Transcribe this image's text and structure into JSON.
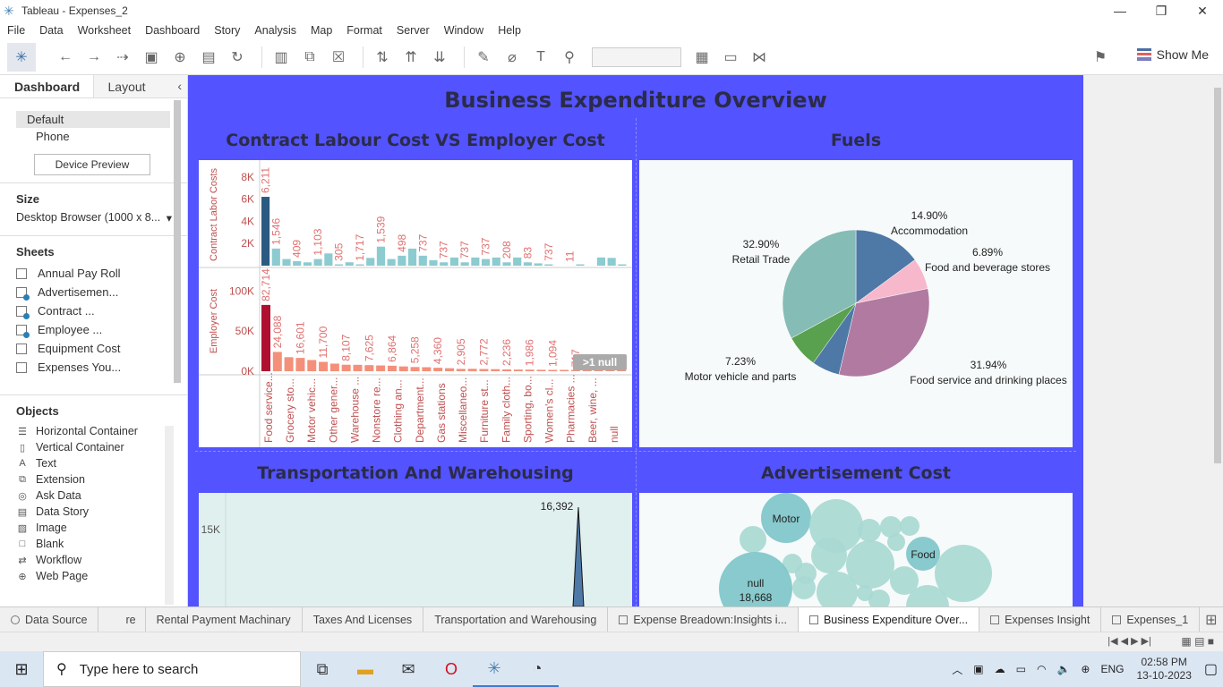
{
  "window": {
    "title": "Tableau - Expenses_2"
  },
  "menu": [
    "File",
    "Data",
    "Worksheet",
    "Dashboard",
    "Story",
    "Analysis",
    "Map",
    "Format",
    "Server",
    "Window",
    "Help"
  ],
  "toolbar": {
    "show_me": "Show Me"
  },
  "sidebar": {
    "tabs": [
      "Dashboard",
      "Layout"
    ],
    "devices": [
      "Default",
      "Phone"
    ],
    "device_preview": "Device Preview",
    "size_title": "Size",
    "size_value": "Desktop Browser (1000 x 8...",
    "sheets_title": "Sheets",
    "sheets": [
      "Annual Pay Roll",
      "Advertisemen...",
      "Contract ...",
      "Employee  ...",
      "Equipment Cost",
      "Expenses You..."
    ],
    "objects_title": "Objects",
    "objects": [
      "Horizontal Container",
      "Vertical Container",
      "Text",
      "Extension",
      "Ask Data",
      "Data Story",
      "Image",
      "Blank",
      "Workflow",
      "Web Page"
    ]
  },
  "dashboard": {
    "title": "Business Expenditure Overview",
    "panels": {
      "contract": "Contract Labour Cost VS Employer Cost",
      "fuels": "Fuels",
      "transport": "Transportation And Warehousing",
      "advert": "Advertisement Cost"
    }
  },
  "chart_data": [
    {
      "type": "bar",
      "title": "Contract Labour Cost VS Employer Cost",
      "categories": [
        "Food service...",
        "Grocery sto...",
        "Motor vehic...",
        "Other gener...",
        "Warehouse ...",
        "Nonstore re...",
        "Clothing an...",
        "Department...",
        "Gas stations",
        "Miscellaneo...",
        "Furniture st...",
        "Family cloth...",
        "Sporting, bo...",
        "Women's cl...",
        "Pharmacies ...",
        "Beer, wine, ...",
        "null"
      ],
      "series": [
        {
          "name": "Contract Labor Costs",
          "bar_values": [
            6211,
            1546,
            600,
            409,
            300,
            600,
            1103,
            100,
            305,
            100,
            700,
            1717,
            600,
            900,
            1539,
            900,
            498,
            300,
            737,
            300,
            737,
            600,
            737,
            300,
            737,
            300,
            208,
            100,
            0,
            0,
            83,
            0,
            737,
            700,
            11
          ],
          "labels": [
            "6,211",
            "1,546",
            "409",
            "1,103",
            "305",
            "1,717",
            "1,539",
            "498",
            "737",
            "737",
            "737",
            "737",
            "208",
            "83",
            "737",
            "11"
          ],
          "ticks": [
            "8K",
            "6K",
            "4K",
            "2K"
          ],
          "ylim": [
            0,
            9200
          ]
        },
        {
          "name": "Employer Cost",
          "bar_values": [
            82714,
            24088,
            17500,
            16601,
            14000,
            11700,
            9500,
            8107,
            8000,
            7625,
            7200,
            6864,
            6000,
            5258,
            5000,
            4360,
            3800,
            2905,
            3000,
            2772,
            2600,
            2236,
            2100,
            1986,
            1800,
            1094,
            900,
            717,
            700,
            600,
            500,
            400
          ],
          "labels": [
            "82,714",
            "24,088",
            "16,601",
            "11,700",
            "8,107",
            "7,625",
            "6,864",
            "5,258",
            "4,360",
            "2,905",
            "2,772",
            "2,236",
            "1,986",
            "1,094",
            "717"
          ],
          "ticks": [
            "100K",
            "50K",
            "0K"
          ],
          "ylim": [
            0,
            125000
          ],
          "null_indicator": ">1 null"
        }
      ]
    },
    {
      "type": "pie",
      "title": "Fuels",
      "slices": [
        {
          "label": "Accommodation",
          "percent": "14.90%",
          "value": 14.9,
          "color": "#4e79a7"
        },
        {
          "label": "Food and beverage stores",
          "percent": "6.89%",
          "value": 6.89,
          "color": "#f8b8cc"
        },
        {
          "label": "Food service and drinking places",
          "percent": "31.94%",
          "value": 31.94,
          "color": "#b07aa1"
        },
        {
          "label": "",
          "percent": "",
          "value": 6.14,
          "color": "#4e79a7"
        },
        {
          "label": "Motor vehicle and parts",
          "percent": "7.23%",
          "value": 7.23,
          "color": "#59a14f"
        },
        {
          "label": "Retail Trade",
          "percent": "32.90%",
          "value": 32.9,
          "color": "#86bcb6"
        }
      ]
    },
    {
      "type": "area",
      "title": "Transportation And Warehousing",
      "ticks": [
        "15K"
      ],
      "peak_label": "16,392",
      "peak_value": 16392
    },
    {
      "type": "bubble",
      "title": "Advertisement Cost",
      "labels": [
        "Motor",
        "Food",
        "null",
        "18,668"
      ]
    }
  ],
  "sheet_tabs": [
    "Data Source",
    "re",
    "Rental Payment Machinary",
    "Taxes And Licenses",
    "Transportation and Warehousing",
    "Expense Breadown:Insights i...",
    "Business Expenditure Over...",
    "Expenses Insight",
    "Expenses_1"
  ],
  "taskbar": {
    "search_placeholder": "Type here to search",
    "lang": "ENG",
    "time": "02:58 PM",
    "date": "13-10-2023"
  }
}
